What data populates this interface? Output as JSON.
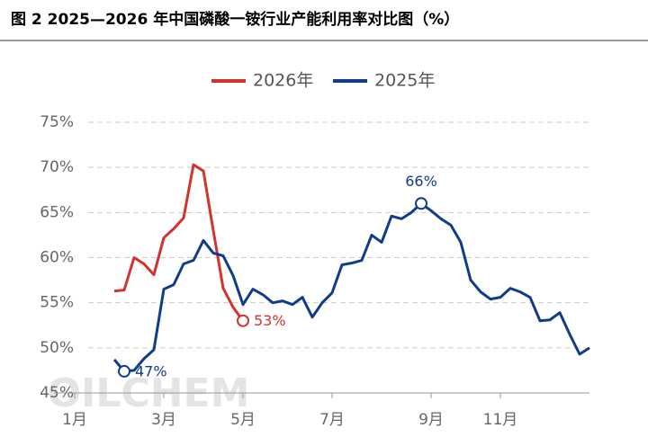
{
  "chart_data": {
    "type": "line",
    "title": "图 2 2025—2026 年中国磷酸一铵行业产能利用率对比图（%）",
    "watermark": "OILCHEM",
    "categories": [
      "1月",
      null,
      null,
      null,
      null,
      null,
      null,
      null,
      null,
      "3月",
      null,
      null,
      null,
      null,
      null,
      null,
      null,
      "5月",
      null,
      null,
      null,
      null,
      null,
      null,
      null,
      null,
      "7月",
      null,
      null,
      null,
      null,
      null,
      null,
      null,
      null,
      null,
      "9月",
      null,
      null,
      null,
      null,
      null,
      null,
      "11月",
      null,
      null,
      null,
      null,
      null,
      null,
      null,
      null,
      null
    ],
    "series": [
      {
        "name": "2026年",
        "color": "#d0342c",
        "values": [
          null,
          null,
          null,
          null,
          56.3,
          56.4,
          60,
          59.3,
          58.1,
          62.2,
          63.2,
          64.4,
          70.3,
          69.6,
          63,
          56.6,
          54.5,
          53,
          null,
          null,
          null,
          null,
          null,
          null,
          null,
          null,
          null,
          null,
          null,
          null,
          null,
          null,
          null,
          null,
          null,
          null,
          null,
          null,
          null,
          null,
          null,
          null,
          null,
          null,
          null,
          null,
          null,
          null,
          null,
          null,
          null,
          null,
          null
        ],
        "value_labels": [
          null,
          null,
          null,
          null,
          null,
          null,
          null,
          null,
          null,
          null,
          null,
          null,
          null,
          null,
          null,
          null,
          null,
          "53%",
          null,
          null,
          null,
          null,
          null,
          null,
          null,
          null,
          null,
          null,
          null,
          null,
          null,
          null,
          null,
          null,
          null,
          null,
          null,
          null,
          null,
          null,
          null,
          null,
          null,
          null,
          null,
          null,
          null,
          null,
          null,
          null,
          null,
          null,
          null
        ]
      },
      {
        "name": "2025年",
        "color": "#0f3d8a",
        "values": [
          null,
          null,
          null,
          null,
          48.7,
          47.4,
          47.5,
          48.8,
          49.8,
          56.5,
          57,
          59.3,
          59.7,
          61.9,
          60.5,
          60.2,
          58,
          54.8,
          56.5,
          55.9,
          55,
          55.2,
          54.8,
          55.6,
          53.4,
          55,
          56.1,
          59.2,
          59.4,
          59.7,
          62.5,
          61.7,
          64.6,
          64.3,
          65,
          66,
          65.2,
          64.3,
          63.6,
          61.7,
          57.5,
          56.2,
          55.4,
          55.6,
          56.6,
          56.2,
          55.6,
          53,
          53.1,
          53.9,
          51.5,
          49.3,
          50
        ],
        "value_labels": [
          null,
          null,
          null,
          null,
          null,
          "47%",
          null,
          null,
          null,
          null,
          null,
          null,
          null,
          null,
          null,
          null,
          null,
          null,
          null,
          null,
          null,
          null,
          null,
          null,
          null,
          null,
          null,
          null,
          null,
          null,
          null,
          null,
          null,
          null,
          null,
          "66%",
          null,
          null,
          null,
          null,
          null,
          null,
          null,
          null,
          null,
          null,
          null,
          null,
          null,
          null,
          null,
          null,
          null
        ]
      }
    ],
    "ylim": [
      45,
      75
    ],
    "yticks": [
      {
        "value": 45,
        "label": "45%"
      },
      {
        "value": 50,
        "label": "50%"
      },
      {
        "value": 55,
        "label": "55%"
      },
      {
        "value": 60,
        "label": "60%"
      },
      {
        "value": 65,
        "label": "65%"
      },
      {
        "value": 70,
        "label": "70%"
      },
      {
        "value": 75,
        "label": "75%"
      }
    ],
    "grid": true,
    "legend": "top"
  }
}
